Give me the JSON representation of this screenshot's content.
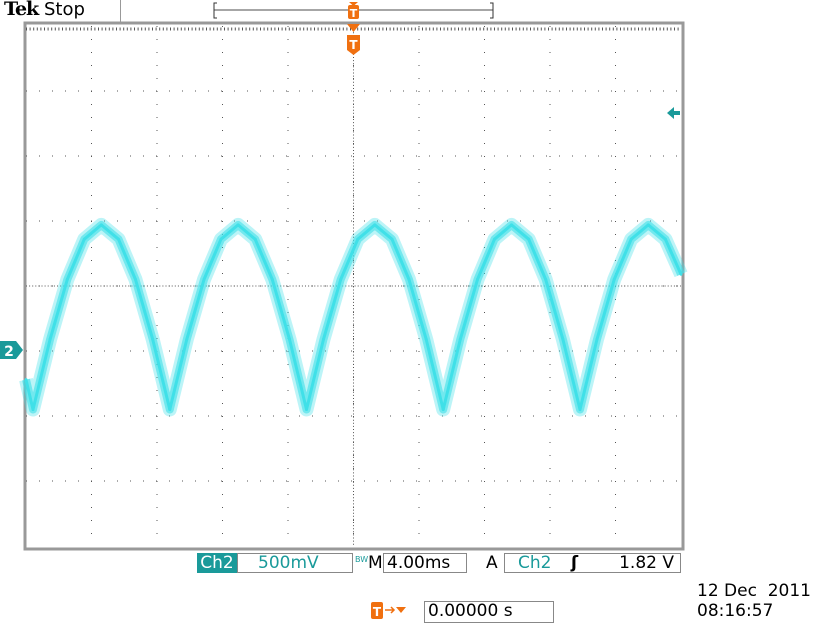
{
  "header": {
    "brand": "Tek",
    "acquisition_state": "Stop"
  },
  "status_bar": {
    "channel": "Ch2",
    "volts_per_div": "500mV",
    "bandwidth_limit": "BW",
    "timebase_label": "M",
    "time_per_div": "4.00ms",
    "trigger_mode": "A",
    "trigger_source": "Ch2",
    "trigger_slope_icon": "rising-edge-icon",
    "trigger_level": "1.82 V",
    "trigger_position": "0.00000 s",
    "date": "12 Dec  2011",
    "time": "08:16:57"
  },
  "markers": {
    "ground_marker": "2",
    "trigger_marker": "T"
  },
  "colors": {
    "trace": "#40e0e8",
    "channel": "#1a9a9a",
    "trigger": "#f07010",
    "grid": "#555555"
  },
  "chart_data": {
    "type": "line",
    "title": "",
    "xlabel": "",
    "ylabel": "",
    "x_units": "ms",
    "y_units": "V",
    "xlim": [
      -20,
      20
    ],
    "ylim": [
      -1.0,
      3.0
    ],
    "divisions": {
      "horizontal": 10,
      "vertical": 8
    },
    "grid": true,
    "series": [
      {
        "x": [
          -20.0,
          -19.57,
          -18.53,
          -17.48,
          -16.44,
          -15.4,
          -14.35,
          -13.31,
          -12.26,
          -11.22,
          -10.18,
          -9.13,
          -8.09,
          -7.05,
          -6.0,
          -4.96,
          -3.91,
          -2.87,
          -1.83,
          -0.78,
          0.26,
          1.3,
          2.35,
          3.39,
          4.44,
          5.48,
          6.52,
          7.57,
          8.61,
          9.65,
          10.7,
          11.74,
          12.79,
          13.83,
          14.87,
          15.92,
          16.96,
          18.0,
          19.05,
          20.0
        ],
        "y": [
          0.28,
          0.05,
          0.59,
          1.05,
          1.36,
          1.47,
          1.36,
          1.05,
          0.59,
          0.05,
          0.59,
          1.05,
          1.36,
          1.47,
          1.36,
          1.05,
          0.59,
          0.05,
          0.59,
          1.05,
          1.36,
          1.47,
          1.36,
          1.05,
          0.59,
          0.05,
          0.59,
          1.05,
          1.36,
          1.47,
          1.36,
          1.05,
          0.59,
          0.05,
          0.59,
          1.05,
          1.36,
          1.47,
          1.36,
          1.09
        ]
      }
    ]
  }
}
